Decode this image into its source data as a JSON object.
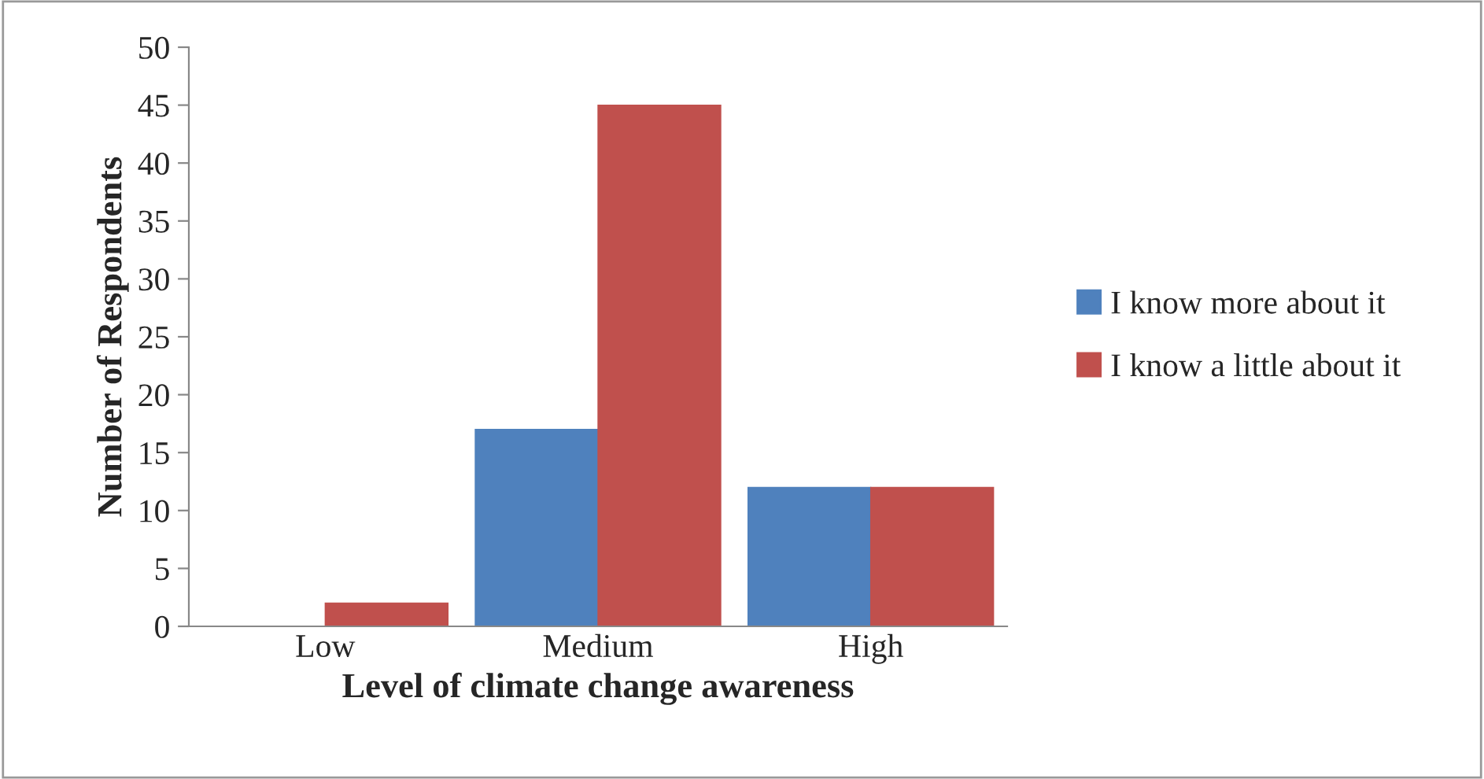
{
  "chart_data": {
    "type": "bar",
    "xlabel": "Level of climate change awareness",
    "ylabel": "Number of Respondents",
    "categories": [
      "Low",
      "Medium",
      "High"
    ],
    "series": [
      {
        "name": "I know more about it",
        "color": "#4f81bd",
        "values": [
          0,
          17,
          12
        ]
      },
      {
        "name": "I know a little about it",
        "color": "#c0504d",
        "values": [
          2,
          45,
          12
        ]
      }
    ],
    "ylim": [
      0,
      50
    ],
    "yticks": [
      0,
      5,
      10,
      15,
      20,
      25,
      30,
      35,
      40,
      45,
      50
    ],
    "grid": false,
    "legend": "right"
  }
}
